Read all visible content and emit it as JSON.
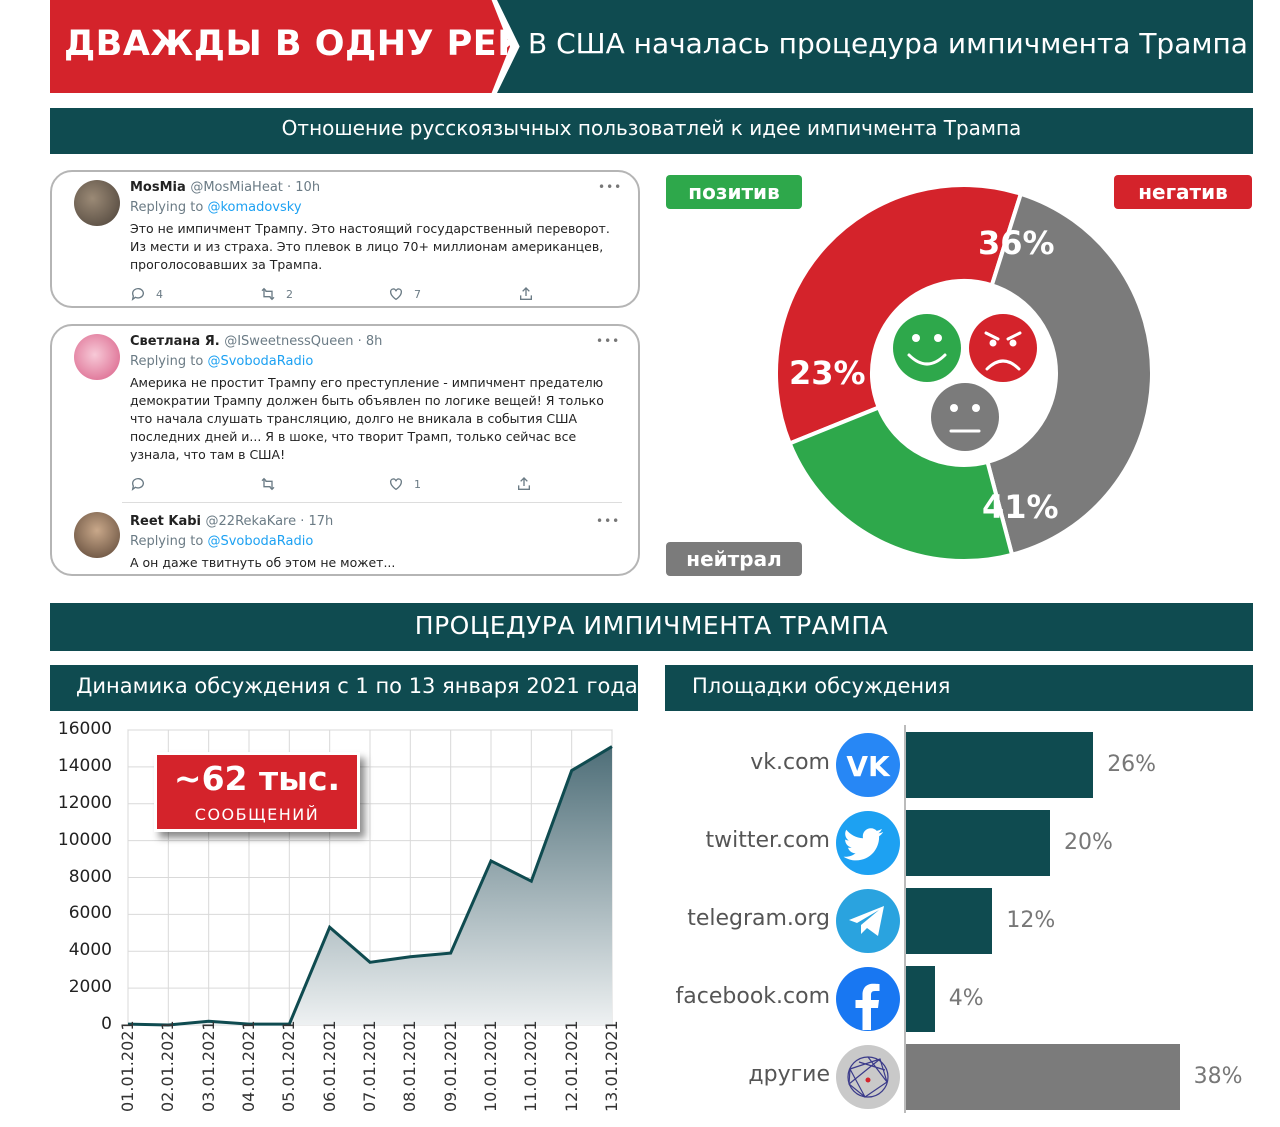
{
  "header": {
    "title_left": "ДВАЖДЫ В ОДНУ РЕКУ",
    "title_right": "В США началась процедура импичмента Трампа"
  },
  "section1": {
    "title": "Отношение русскоязычных пользоватлей к идее импичмента Трампа"
  },
  "tweets": [
    {
      "name": "MosMia",
      "handle": "@MosMiaHeat · 10h",
      "replying_prefix": "Replying to",
      "replying_to": "@komadovsky",
      "text": "Это не импичмент Трампу. Это настоящий государственный переворот. Из мести и из страха. Это плевок в лицо 70+ миллионам американцев, проголосовавших за Трампа.",
      "replies": "4",
      "retweets": "2",
      "likes": "7"
    },
    {
      "name": "Светлана Я.",
      "handle": "@ISweetnessQueen · 8h",
      "replying_prefix": "Replying to",
      "replying_to": "@SvobodaRadio",
      "text": "Америка не простит Трампу его преступление - импичмент предателю демократии Трампу должен быть объявлен по логике вещей! Я только что начала слушать трансляцию, долго не вникала в события США последних дней и... Я в шоке, что творит Трамп, только сейчас все узнала, что там в США!",
      "replies": "",
      "retweets": "",
      "likes": "1"
    },
    {
      "name": "Reet Kabi",
      "handle": "@22RekaKare · 17h",
      "replying_prefix": "Replying to",
      "replying_to": "@SvobodaRadio",
      "text": "А он даже твитнуть об этом не может..."
    }
  ],
  "sentiment": {
    "labels": {
      "positive": "позитив",
      "negative": "негатив",
      "neutral": "нейтрал"
    }
  },
  "section2": {
    "title": "ПРОЦЕДУРА ИМПИЧМЕНТА ТРАМПА",
    "dynamics_title": "Динамика обсуждения с 1 по 13 января 2021 года",
    "platforms_title": "Площадки обсуждения",
    "callout_big": "~62 тыс.",
    "callout_small": "СООБЩЕНИЙ"
  },
  "colors": {
    "red": "#d4232b",
    "teal": "#0f4b50",
    "green": "#2ea84b",
    "gray": "#7b7b7b",
    "vk": "#2787f5",
    "twitter": "#1da1f2",
    "telegram": "#2aa3df",
    "facebook": "#1877f2"
  },
  "chart_data": [
    {
      "type": "pie",
      "categories": [
        "негатив",
        "нейтрал",
        "позитив"
      ],
      "values": [
        36,
        41,
        23
      ],
      "labels": [
        "36%",
        "41%",
        "23%"
      ],
      "colors": [
        "#d4232b",
        "#7b7b7b",
        "#2ea84b"
      ]
    },
    {
      "type": "area",
      "x": [
        "01.01.2021",
        "02.01.2021",
        "03.01.2021",
        "04.01.2021",
        "05.01.2021",
        "06.01.2021",
        "07.01.2021",
        "08.01.2021",
        "09.01.2021",
        "10.01.2021",
        "11.01.2021",
        "12.01.2021",
        "13.01.2021"
      ],
      "values": [
        50,
        0,
        200,
        50,
        50,
        5300,
        3400,
        3700,
        3900,
        8900,
        7800,
        13800,
        15100
      ],
      "yticks": [
        "16000",
        "14000",
        "12000",
        "10000",
        "8000",
        "6000",
        "4000",
        "2000",
        "0"
      ],
      "ylim": [
        0,
        16000
      ],
      "grid": true
    },
    {
      "type": "bar",
      "orientation": "horizontal",
      "categories": [
        "vk.com",
        "twitter.com",
        "telegram.org",
        "facebook.com",
        "другие"
      ],
      "values": [
        26,
        20,
        12,
        4,
        38
      ],
      "labels": [
        "26%",
        "20%",
        "12%",
        "4%",
        "38%"
      ],
      "icons": [
        "vk-icon",
        "twitter-icon",
        "telegram-icon",
        "facebook-icon",
        "network-icon"
      ]
    }
  ]
}
